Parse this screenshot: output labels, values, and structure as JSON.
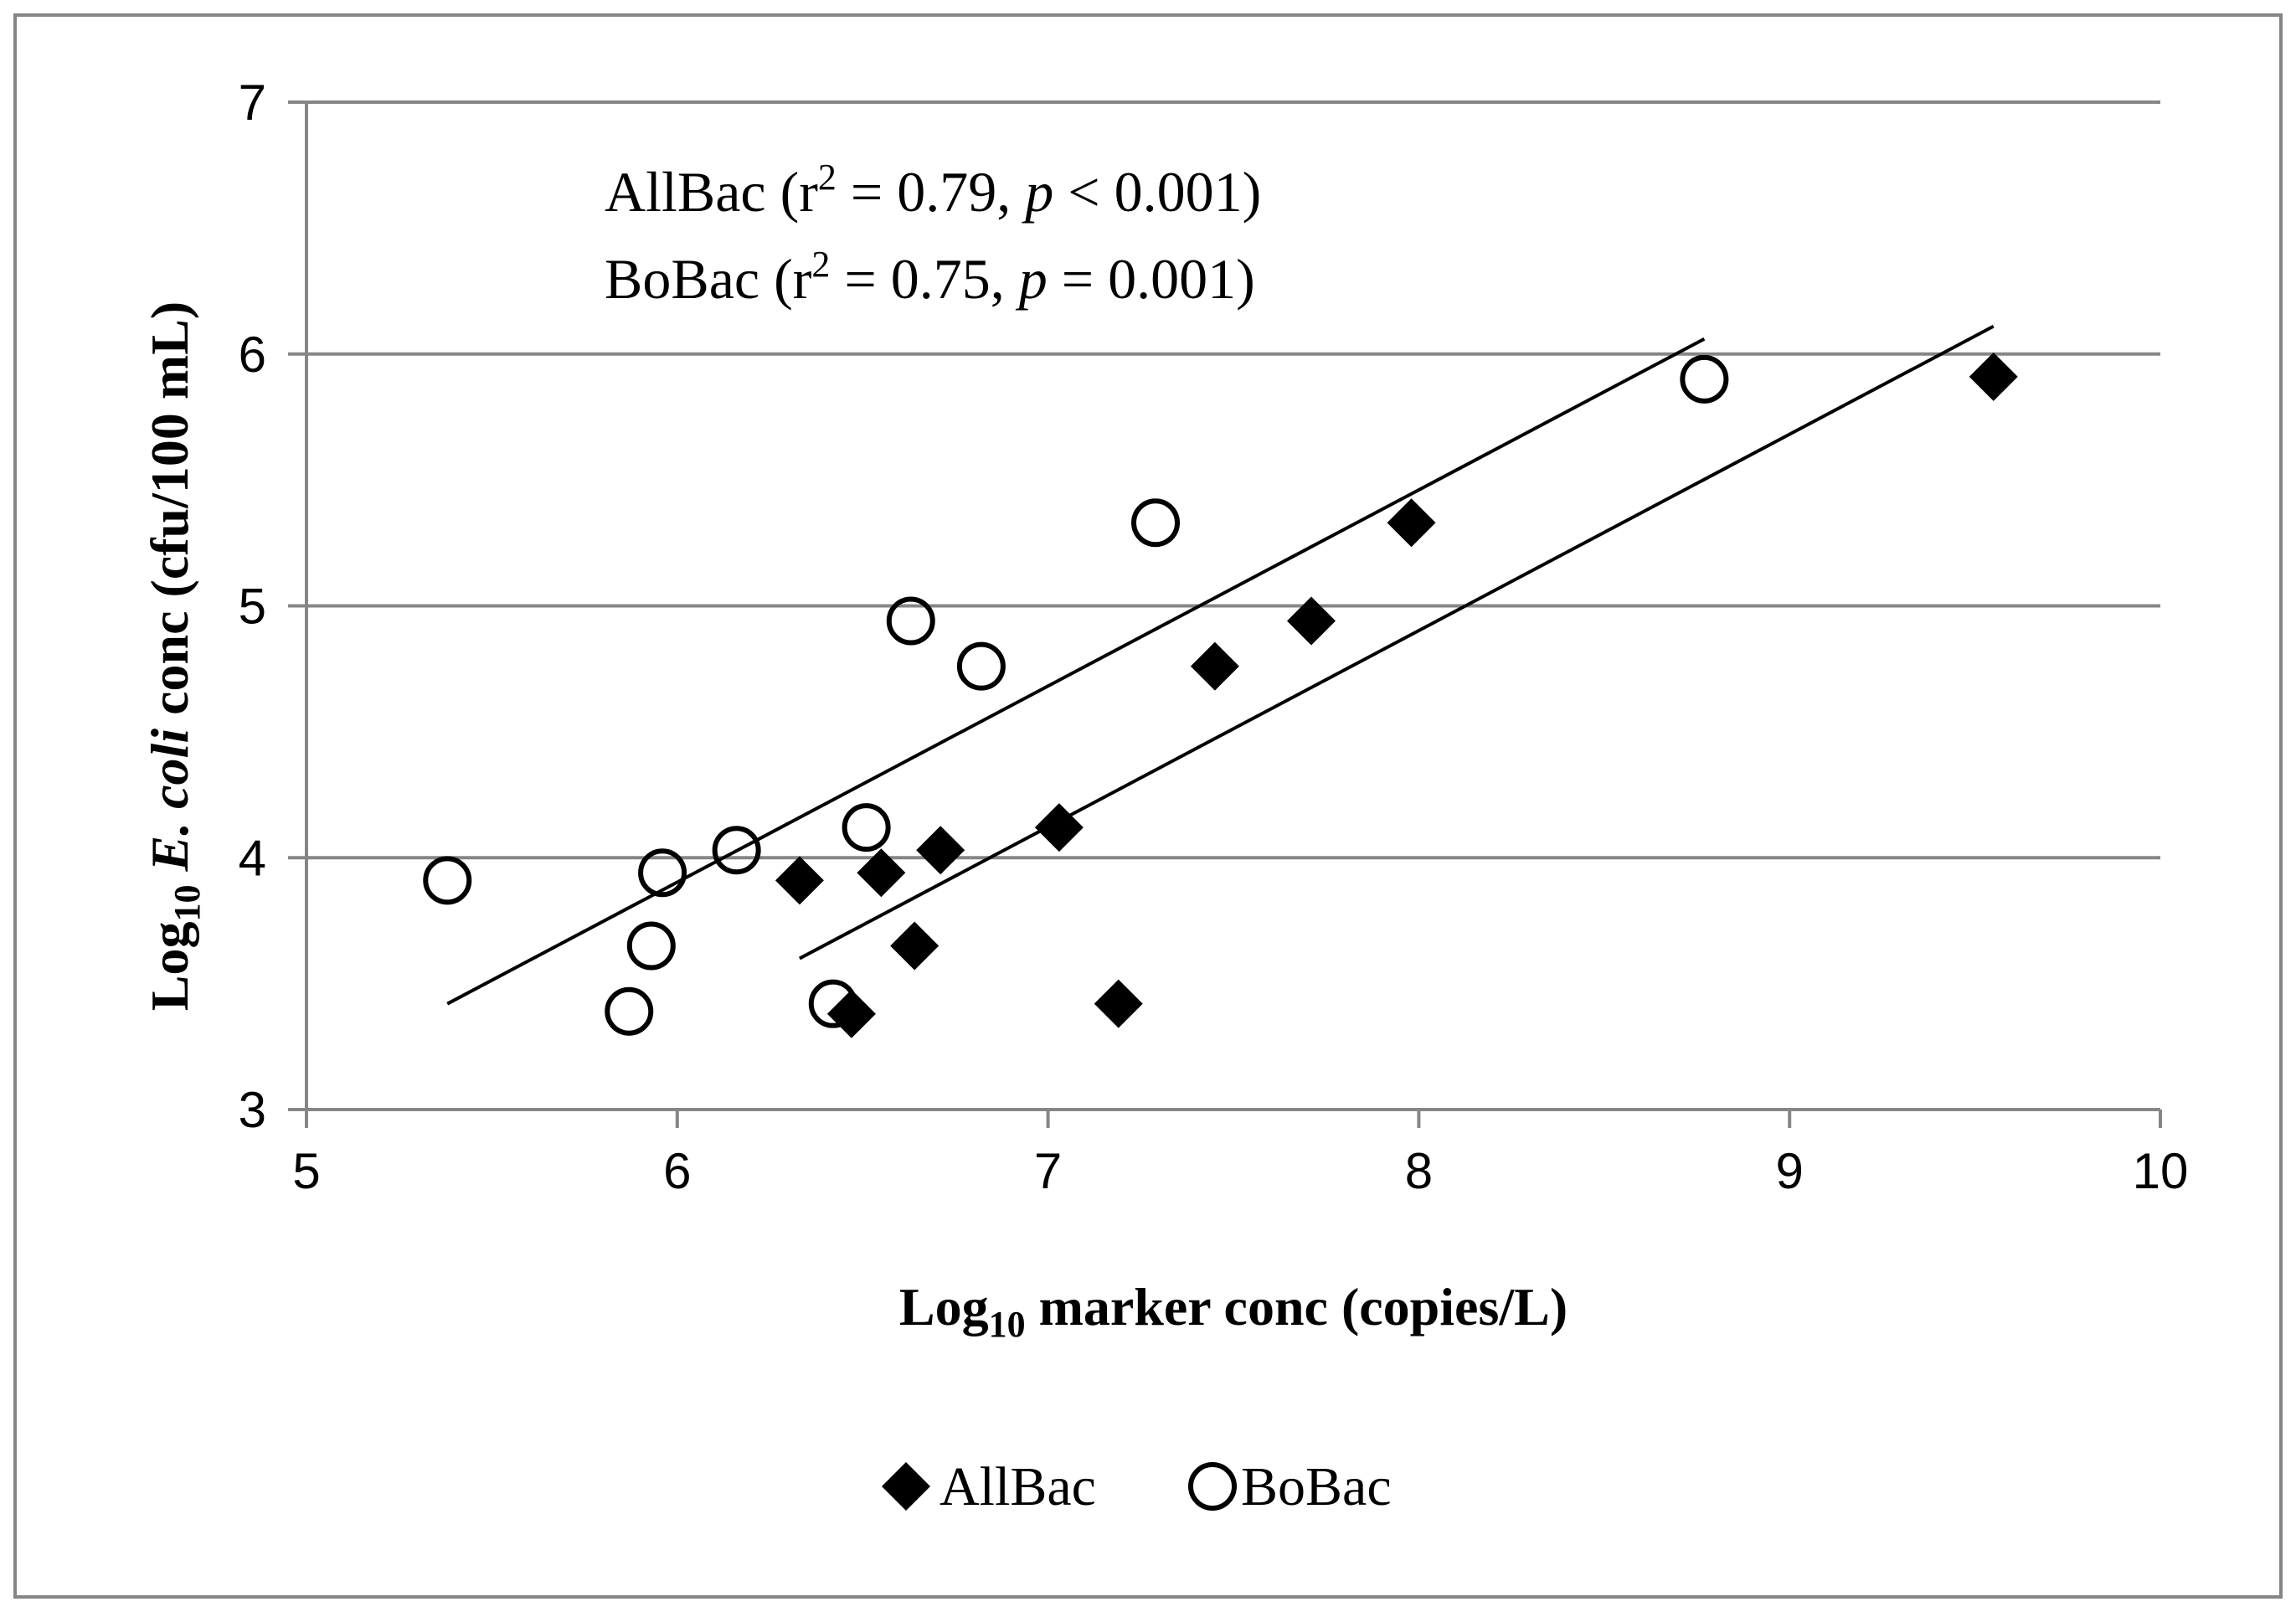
{
  "chart_data": {
    "type": "scatter",
    "xlabel": {
      "pre": "Log",
      "sub": "10",
      "post": " marker conc (copies/L)"
    },
    "ylabel": {
      "pre": "Log",
      "sub": "10",
      "italic": " E. coli",
      "post": " conc (cfu/100 mL)"
    },
    "xlim": [
      5,
      10
    ],
    "ylim": [
      3,
      7
    ],
    "xticks": [
      "5",
      "6",
      "7",
      "8",
      "9",
      "10"
    ],
    "yticks": [
      "3",
      "4",
      "5",
      "6",
      "7"
    ],
    "grid": "horizontal",
    "legend_position": "bottom",
    "annotations": [
      {
        "pre": "AllBac (r",
        "sup": "2",
        "mid": " = 0.79, ",
        "ital": "p",
        "post": " < 0.001)"
      },
      {
        "pre": "BoBac (r",
        "sup": "2",
        "mid": " = 0.75, ",
        "ital": "p",
        "post": " = 0.001)"
      }
    ],
    "series": [
      {
        "name": "AllBac",
        "marker": "filled-diamond",
        "color": "#000000",
        "points": [
          [
            6.33,
            3.91
          ],
          [
            6.47,
            3.38
          ],
          [
            6.55,
            3.94
          ],
          [
            6.64,
            3.65
          ],
          [
            6.71,
            4.03
          ],
          [
            7.03,
            4.12
          ],
          [
            7.19,
            3.42
          ],
          [
            7.45,
            4.76
          ],
          [
            7.71,
            4.94
          ],
          [
            7.98,
            5.33
          ],
          [
            9.55,
            5.91
          ]
        ],
        "trendline": [
          [
            6.33,
            3.6
          ],
          [
            9.55,
            6.11
          ]
        ]
      },
      {
        "name": "BoBac",
        "marker": "open-circle",
        "color": "#000000",
        "points": [
          [
            5.38,
            3.91
          ],
          [
            5.87,
            3.39
          ],
          [
            5.93,
            3.65
          ],
          [
            5.96,
            3.94
          ],
          [
            6.16,
            4.03
          ],
          [
            6.42,
            3.42
          ],
          [
            6.51,
            4.12
          ],
          [
            6.63,
            4.94
          ],
          [
            6.82,
            4.76
          ],
          [
            7.29,
            5.33
          ],
          [
            8.77,
            5.9
          ]
        ],
        "trendline": [
          [
            5.38,
            3.42
          ],
          [
            8.77,
            6.06
          ]
        ]
      }
    ]
  }
}
